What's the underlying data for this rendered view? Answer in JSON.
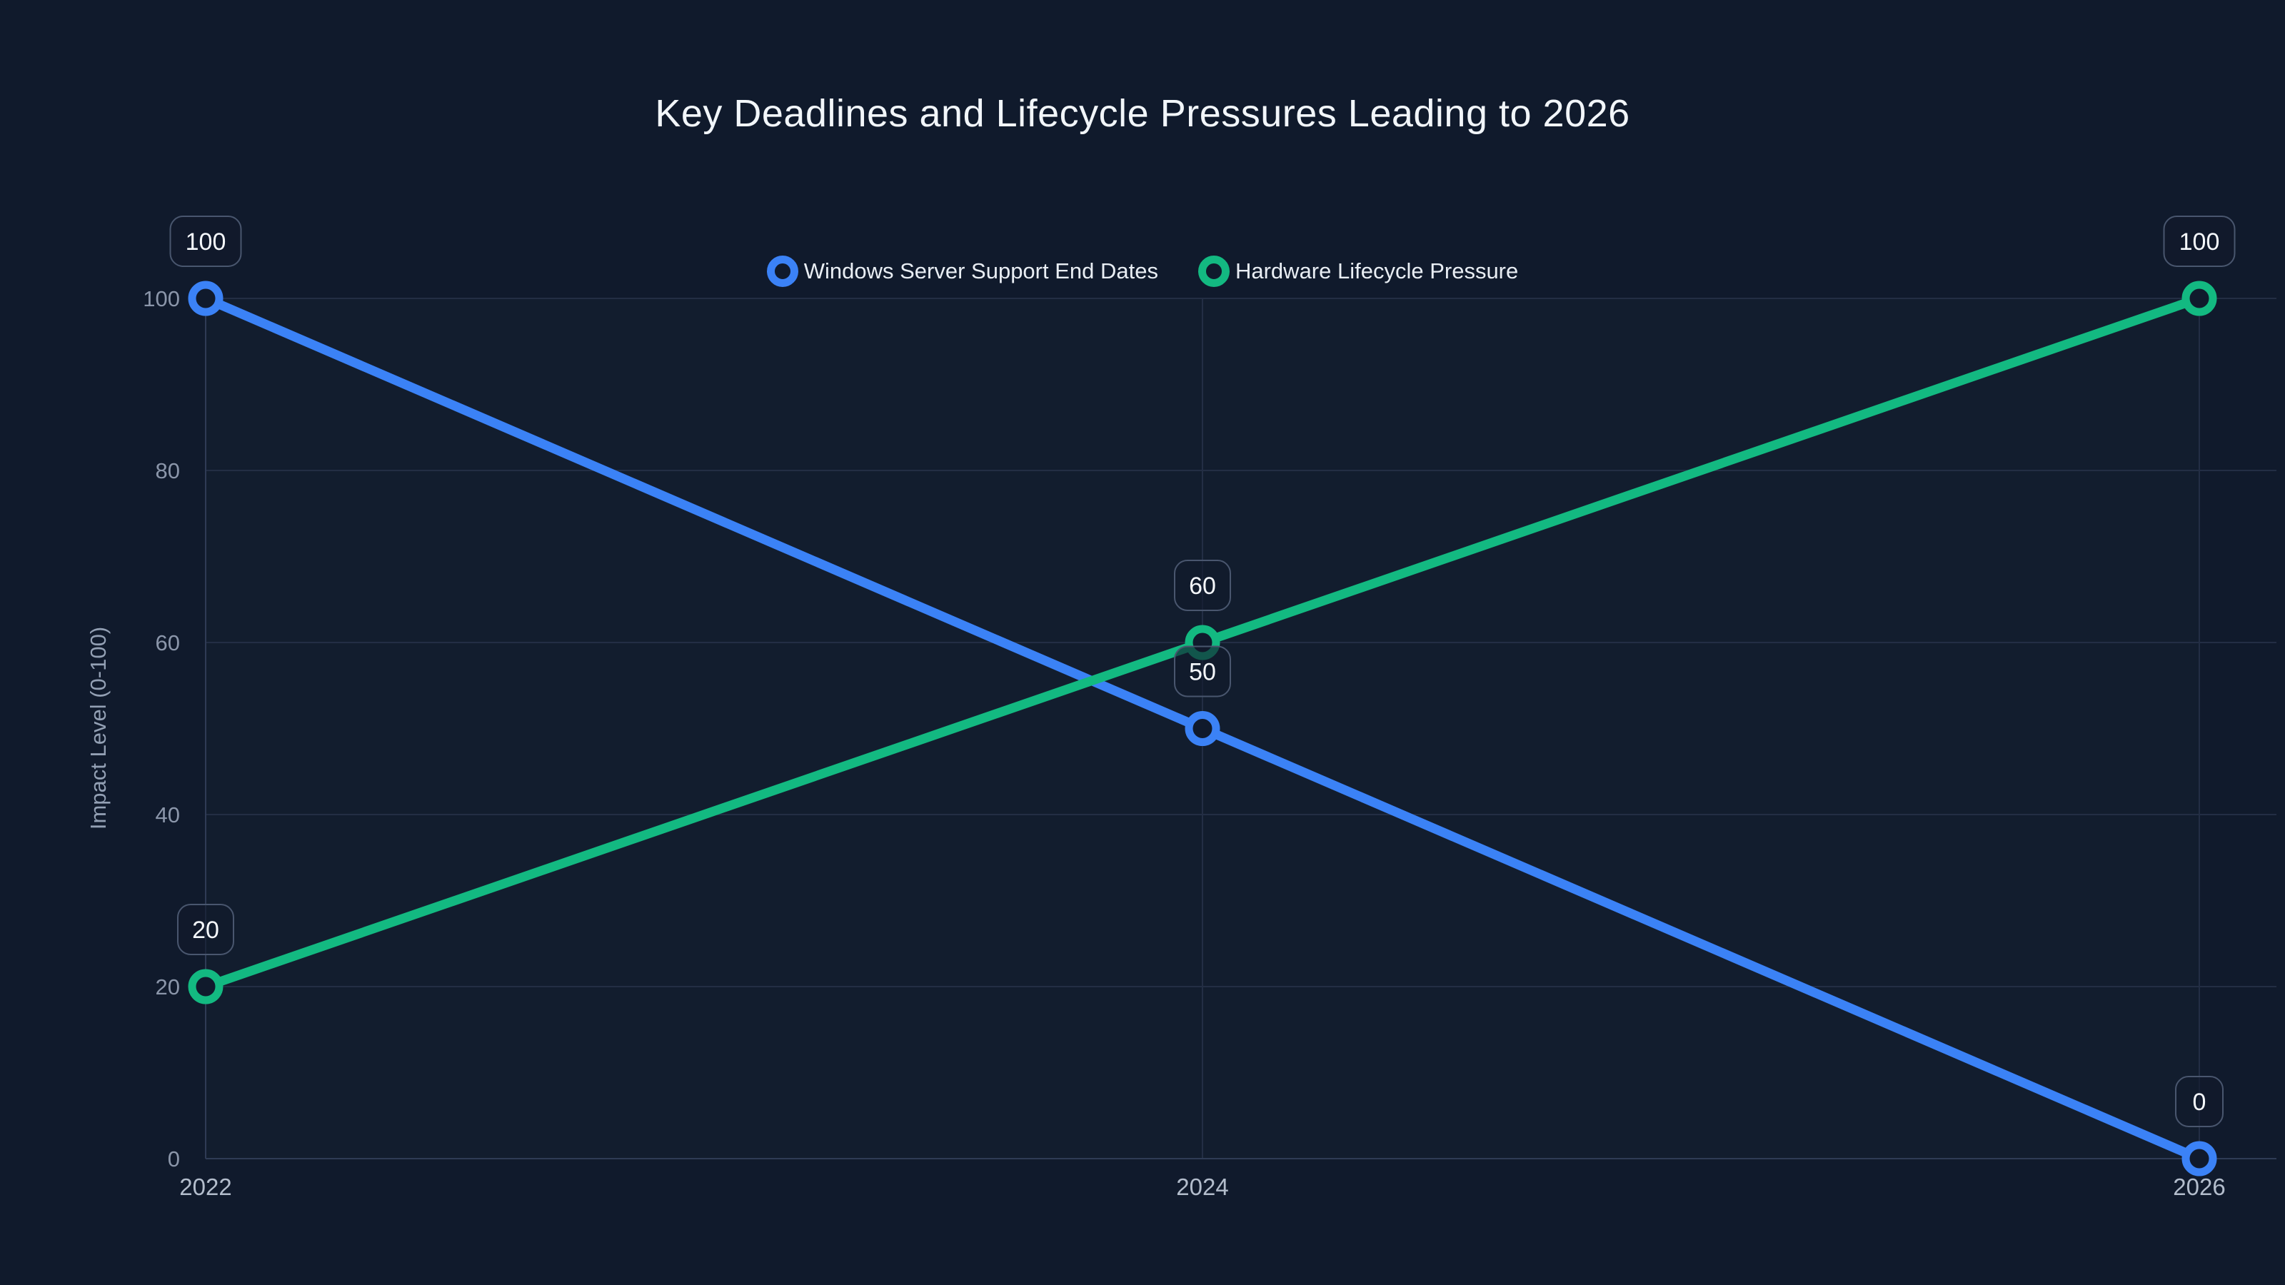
{
  "page": {
    "background_color": "#101a2c"
  },
  "chart_data": {
    "type": "line",
    "title": "Key Deadlines and Lifecycle Pressures Leading to 2026",
    "xlabel": "",
    "ylabel": "Impact Level (0-100)",
    "x_categories": [
      "2022",
      "2024",
      "2026"
    ],
    "y_ticks": [
      0,
      20,
      40,
      60,
      80,
      100
    ],
    "ylim": [
      0,
      100
    ],
    "grid": true,
    "legend_position": "top-center",
    "series": [
      {
        "name": "Windows Server Support End Dates",
        "color": "#3b82f6",
        "values": [
          100,
          50,
          0
        ],
        "point_labels": [
          "100",
          "50",
          "0"
        ]
      },
      {
        "name": "Hardware Lifecycle Pressure",
        "color": "#13b981",
        "values": [
          20,
          60,
          100
        ],
        "point_labels": [
          "20",
          "60",
          "100"
        ]
      }
    ],
    "theme": {
      "background": "#101a2c",
      "plot_area_fill": "rgba(148,163,184,0.025)",
      "grid_color": "#232e44",
      "axis_color": "#2f3b55",
      "y_tick_text": "#8b96aa",
      "x_tick_text": "#b3bdcc",
      "axis_title_text": "#93a0b4",
      "title_text": "#f2f6fa",
      "legend_text": "#e9eef4",
      "label_box_fill": "rgba(17,26,44,0.62)",
      "label_box_border": "#49566e",
      "label_text": "#f5f8fc"
    }
  }
}
